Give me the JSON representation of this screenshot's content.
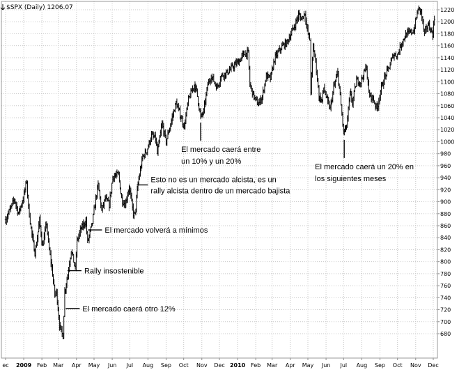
{
  "chart_data": {
    "type": "line",
    "style": "ohlc-bars",
    "title": "$SPX (Daily) 1206.07",
    "ylim": [
      662,
      1230
    ],
    "y_ticks": [
      680,
      700,
      720,
      740,
      760,
      780,
      800,
      820,
      840,
      860,
      880,
      900,
      920,
      940,
      960,
      980,
      1000,
      1020,
      1040,
      1060,
      1080,
      1100,
      1120,
      1140,
      1160,
      1180,
      1200,
      1220
    ],
    "x_ticks": [
      {
        "label": "ec",
        "date": "2008-12-01",
        "bold": false
      },
      {
        "label": "2009",
        "date": "2009-01-01",
        "bold": true
      },
      {
        "label": "Feb",
        "date": "2009-02-01",
        "bold": false
      },
      {
        "label": "Mar",
        "date": "2009-03-01",
        "bold": false
      },
      {
        "label": "Apr",
        "date": "2009-04-01",
        "bold": false
      },
      {
        "label": "May",
        "date": "2009-05-01",
        "bold": false
      },
      {
        "label": "Jun",
        "date": "2009-06-01",
        "bold": false
      },
      {
        "label": "Jul",
        "date": "2009-07-01",
        "bold": false
      },
      {
        "label": "Aug",
        "date": "2009-08-01",
        "bold": false
      },
      {
        "label": "Sep",
        "date": "2009-09-01",
        "bold": false
      },
      {
        "label": "Oct",
        "date": "2009-10-01",
        "bold": false
      },
      {
        "label": "Nov",
        "date": "2009-11-01",
        "bold": false
      },
      {
        "label": "Dec",
        "date": "2009-12-01",
        "bold": false
      },
      {
        "label": "2010",
        "date": "2010-01-01",
        "bold": true
      },
      {
        "label": "Feb",
        "date": "2010-02-01",
        "bold": false
      },
      {
        "label": "Mar",
        "date": "2010-03-01",
        "bold": false
      },
      {
        "label": "Apr",
        "date": "2010-04-01",
        "bold": false
      },
      {
        "label": "May",
        "date": "2010-05-01",
        "bold": false
      },
      {
        "label": "Jun",
        "date": "2010-06-01",
        "bold": false
      },
      {
        "label": "Jul",
        "date": "2010-07-01",
        "bold": false
      },
      {
        "label": "Aug",
        "date": "2010-08-01",
        "bold": false
      },
      {
        "label": "Sep",
        "date": "2010-09-01",
        "bold": false
      },
      {
        "label": "Oct",
        "date": "2010-10-01",
        "bold": false
      },
      {
        "label": "Nov",
        "date": "2010-11-01",
        "bold": false
      },
      {
        "label": "Dec",
        "date": "2010-12-01",
        "bold": false
      }
    ],
    "grid": true,
    "y_axis_side": "right",
    "series": [
      {
        "color": "#000000",
        "points": [
          {
            "x": "2008-12-01",
            "y": 870
          },
          {
            "x": "2008-12-10",
            "y": 890
          },
          {
            "x": "2008-12-16",
            "y": 905
          },
          {
            "x": "2008-12-23",
            "y": 880
          },
          {
            "x": "2008-12-31",
            "y": 905
          },
          {
            "x": "2009-01-06",
            "y": 935
          },
          {
            "x": "2009-01-09",
            "y": 890
          },
          {
            "x": "2009-01-15",
            "y": 845
          },
          {
            "x": "2009-01-20",
            "y": 815
          },
          {
            "x": "2009-01-23",
            "y": 830
          },
          {
            "x": "2009-01-28",
            "y": 870
          },
          {
            "x": "2009-02-02",
            "y": 825
          },
          {
            "x": "2009-02-09",
            "y": 865
          },
          {
            "x": "2009-02-12",
            "y": 830
          },
          {
            "x": "2009-02-18",
            "y": 790
          },
          {
            "x": "2009-02-23",
            "y": 745
          },
          {
            "x": "2009-02-26",
            "y": 750
          },
          {
            "x": "2009-03-03",
            "y": 695
          },
          {
            "x": "2009-03-06",
            "y": 683
          },
          {
            "x": "2009-03-09",
            "y": 676
          },
          {
            "x": "2009-03-12",
            "y": 750
          },
          {
            "x": "2009-03-17",
            "y": 778
          },
          {
            "x": "2009-03-23",
            "y": 820
          },
          {
            "x": "2009-03-30",
            "y": 788
          },
          {
            "x": "2009-04-02",
            "y": 835
          },
          {
            "x": "2009-04-09",
            "y": 855
          },
          {
            "x": "2009-04-17",
            "y": 868
          },
          {
            "x": "2009-04-20",
            "y": 832
          },
          {
            "x": "2009-04-28",
            "y": 865
          },
          {
            "x": "2009-05-04",
            "y": 905
          },
          {
            "x": "2009-05-08",
            "y": 928
          },
          {
            "x": "2009-05-14",
            "y": 885
          },
          {
            "x": "2009-05-20",
            "y": 905
          },
          {
            "x": "2009-05-27",
            "y": 895
          },
          {
            "x": "2009-06-02",
            "y": 942
          },
          {
            "x": "2009-06-12",
            "y": 945
          },
          {
            "x": "2009-06-17",
            "y": 905
          },
          {
            "x": "2009-06-23",
            "y": 895
          },
          {
            "x": "2009-06-30",
            "y": 925
          },
          {
            "x": "2009-07-07",
            "y": 880
          },
          {
            "x": "2009-07-10",
            "y": 878
          },
          {
            "x": "2009-07-15",
            "y": 930
          },
          {
            "x": "2009-07-23",
            "y": 975
          },
          {
            "x": "2009-07-30",
            "y": 985
          },
          {
            "x": "2009-08-07",
            "y": 1010
          },
          {
            "x": "2009-08-14",
            "y": 1005
          },
          {
            "x": "2009-08-17",
            "y": 980
          },
          {
            "x": "2009-08-25",
            "y": 1030
          },
          {
            "x": "2009-09-01",
            "y": 1000
          },
          {
            "x": "2009-09-10",
            "y": 1035
          },
          {
            "x": "2009-09-18",
            "y": 1065
          },
          {
            "x": "2009-09-25",
            "y": 1045
          },
          {
            "x": "2009-10-02",
            "y": 1025
          },
          {
            "x": "2009-10-09",
            "y": 1070
          },
          {
            "x": "2009-10-19",
            "y": 1095
          },
          {
            "x": "2009-10-23",
            "y": 1085
          },
          {
            "x": "2009-10-30",
            "y": 1040
          },
          {
            "x": "2009-11-04",
            "y": 1050
          },
          {
            "x": "2009-11-11",
            "y": 1095
          },
          {
            "x": "2009-11-17",
            "y": 1110
          },
          {
            "x": "2009-11-27",
            "y": 1090
          },
          {
            "x": "2009-12-04",
            "y": 1110
          },
          {
            "x": "2009-12-14",
            "y": 1115
          },
          {
            "x": "2009-12-24",
            "y": 1125
          },
          {
            "x": "2010-01-04",
            "y": 1135
          },
          {
            "x": "2010-01-11",
            "y": 1146
          },
          {
            "x": "2010-01-19",
            "y": 1148
          },
          {
            "x": "2010-01-22",
            "y": 1095
          },
          {
            "x": "2010-01-29",
            "y": 1075
          },
          {
            "x": "2010-02-05",
            "y": 1062
          },
          {
            "x": "2010-02-12",
            "y": 1075
          },
          {
            "x": "2010-02-19",
            "y": 1110
          },
          {
            "x": "2010-02-26",
            "y": 1105
          },
          {
            "x": "2010-03-05",
            "y": 1138
          },
          {
            "x": "2010-03-12",
            "y": 1150
          },
          {
            "x": "2010-03-19",
            "y": 1160
          },
          {
            "x": "2010-03-26",
            "y": 1165
          },
          {
            "x": "2010-04-02",
            "y": 1180
          },
          {
            "x": "2010-04-09",
            "y": 1195
          },
          {
            "x": "2010-04-15",
            "y": 1212
          },
          {
            "x": "2010-04-20",
            "y": 1205
          },
          {
            "x": "2010-04-26",
            "y": 1215
          },
          {
            "x": "2010-04-30",
            "y": 1185
          },
          {
            "x": "2010-05-04",
            "y": 1170
          },
          {
            "x": "2010-05-06",
            "y": 1085
          },
          {
            "x": "2010-05-10",
            "y": 1160
          },
          {
            "x": "2010-05-14",
            "y": 1135
          },
          {
            "x": "2010-05-20",
            "y": 1075
          },
          {
            "x": "2010-05-25",
            "y": 1068
          },
          {
            "x": "2010-05-28",
            "y": 1090
          },
          {
            "x": "2010-06-04",
            "y": 1065
          },
          {
            "x": "2010-06-08",
            "y": 1055
          },
          {
            "x": "2010-06-14",
            "y": 1090
          },
          {
            "x": "2010-06-21",
            "y": 1115
          },
          {
            "x": "2010-06-25",
            "y": 1075
          },
          {
            "x": "2010-07-01",
            "y": 1015
          },
          {
            "x": "2010-07-06",
            "y": 1025
          },
          {
            "x": "2010-07-12",
            "y": 1080
          },
          {
            "x": "2010-07-16",
            "y": 1065
          },
          {
            "x": "2010-07-23",
            "y": 1102
          },
          {
            "x": "2010-07-30",
            "y": 1100
          },
          {
            "x": "2010-08-09",
            "y": 1125
          },
          {
            "x": "2010-08-13",
            "y": 1080
          },
          {
            "x": "2010-08-20",
            "y": 1072
          },
          {
            "x": "2010-08-27",
            "y": 1055
          },
          {
            "x": "2010-09-02",
            "y": 1085
          },
          {
            "x": "2010-09-10",
            "y": 1110
          },
          {
            "x": "2010-09-17",
            "y": 1125
          },
          {
            "x": "2010-09-24",
            "y": 1145
          },
          {
            "x": "2010-10-01",
            "y": 1145
          },
          {
            "x": "2010-10-08",
            "y": 1165
          },
          {
            "x": "2010-10-15",
            "y": 1178
          },
          {
            "x": "2010-10-22",
            "y": 1182
          },
          {
            "x": "2010-10-29",
            "y": 1185
          },
          {
            "x": "2010-11-05",
            "y": 1222
          },
          {
            "x": "2010-11-10",
            "y": 1218
          },
          {
            "x": "2010-11-16",
            "y": 1178
          },
          {
            "x": "2010-11-22",
            "y": 1196
          },
          {
            "x": "2010-11-30",
            "y": 1180
          },
          {
            "x": "2010-12-03",
            "y": 1206
          }
        ]
      }
    ],
    "annotations": [
      {
        "lines": [
          "El mercado caerá otro 12%"
        ],
        "date": "2009-03-09",
        "value": 722
      },
      {
        "lines": [
          "Rally insostenible"
        ],
        "date": "2009-03-12",
        "value": 785
      },
      {
        "lines": [
          "El mercado volverá a mínimos"
        ],
        "date": "2009-04-16",
        "value": 853
      },
      {
        "lines": [
          "Esto no es un mercado alcista, es un",
          "rally alcista dentro de un mercado bajista"
        ],
        "date": "2009-07-13",
        "value": 928
      },
      {
        "lines": [
          "El mercado caerá entre",
          "un 10% y un 20%"
        ],
        "date": "2009-10-30",
        "value": 1032
      },
      {
        "lines": [
          "El mercado caerá un 20% en",
          "los siguientes meses"
        ],
        "date": "2010-07-02",
        "value": 1003
      }
    ]
  }
}
